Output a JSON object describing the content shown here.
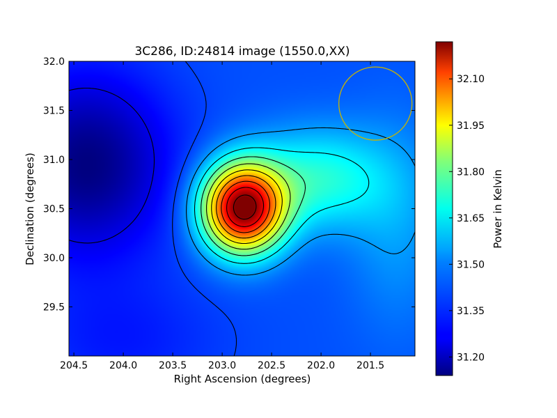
{
  "chart_data": {
    "type": "heatmap",
    "title": "3C286, ID:24814 image (1550.0,XX)",
    "xlabel": "Right Ascension (degrees)",
    "ylabel": "Declination (degrees)",
    "xlim": [
      204.55,
      201.05
    ],
    "ylim": [
      29.0,
      32.0
    ],
    "xticks": [
      "204.5",
      "204.0",
      "203.5",
      "203.0",
      "202.5",
      "202.0",
      "201.5"
    ],
    "yticks": [
      "29.5",
      "30.0",
      "30.5",
      "31.0",
      "31.5",
      "32.0"
    ],
    "colorbar": {
      "label": "Power in Kelvin",
      "range": [
        31.14,
        32.22
      ],
      "ticks": [
        "31.20",
        "31.35",
        "31.50",
        "31.65",
        "31.80",
        "31.95",
        "32.10"
      ],
      "colormap": "jet"
    },
    "peak": {
      "ra": 202.78,
      "dec": 30.5,
      "value": 32.22
    },
    "minimum": {
      "ra": 204.4,
      "dec": 31.2,
      "value": 31.14
    },
    "beam_circle": {
      "ra": 201.45,
      "dec": 31.57,
      "radius_deg": 0.37,
      "color": "#c8b400"
    }
  },
  "colors": {
    "contour": "#000000",
    "frame": "#000000"
  }
}
